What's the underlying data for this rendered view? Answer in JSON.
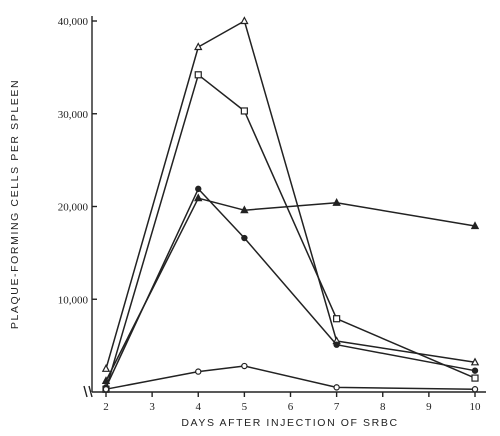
{
  "chart_data": {
    "type": "line",
    "title": "",
    "xlabel": "DAYS AFTER INJECTION OF SRBC",
    "ylabel": "PLAQUE-FORMING CELLS PER SPLEEN",
    "xlim": [
      2,
      10
    ],
    "ylim": [
      0,
      40000
    ],
    "x_ticks": [
      2,
      3,
      4,
      5,
      6,
      7,
      8,
      9,
      10
    ],
    "x_tick_labels": [
      "2",
      "3",
      "4",
      "5",
      "6",
      "7",
      "8",
      "9",
      "10"
    ],
    "y_ticks": [
      10000,
      20000,
      30000,
      40000
    ],
    "y_tick_labels": [
      "10,000",
      "20,000",
      "30,000",
      "40,000"
    ],
    "grid": false,
    "legend": "none",
    "series": [
      {
        "marker": "open-triangle",
        "x": [
          2,
          4,
          5,
          7,
          10
        ],
        "y": [
          2500,
          37200,
          40000,
          5500,
          3200
        ]
      },
      {
        "marker": "open-square",
        "x": [
          2,
          4,
          5,
          7,
          10
        ],
        "y": [
          300,
          34200,
          30300,
          7900,
          1500
        ]
      },
      {
        "marker": "filled-circle",
        "x": [
          2,
          4,
          5,
          7,
          10
        ],
        "y": [
          500,
          21900,
          16600,
          5100,
          2300
        ]
      },
      {
        "marker": "filled-triangle",
        "x": [
          2,
          4,
          5,
          7,
          10
        ],
        "y": [
          1200,
          20900,
          19600,
          20400,
          17900
        ]
      },
      {
        "marker": "open-circle",
        "x": [
          2,
          4,
          5,
          7,
          10
        ],
        "y": [
          300,
          2200,
          2800,
          500,
          300
        ]
      }
    ]
  }
}
